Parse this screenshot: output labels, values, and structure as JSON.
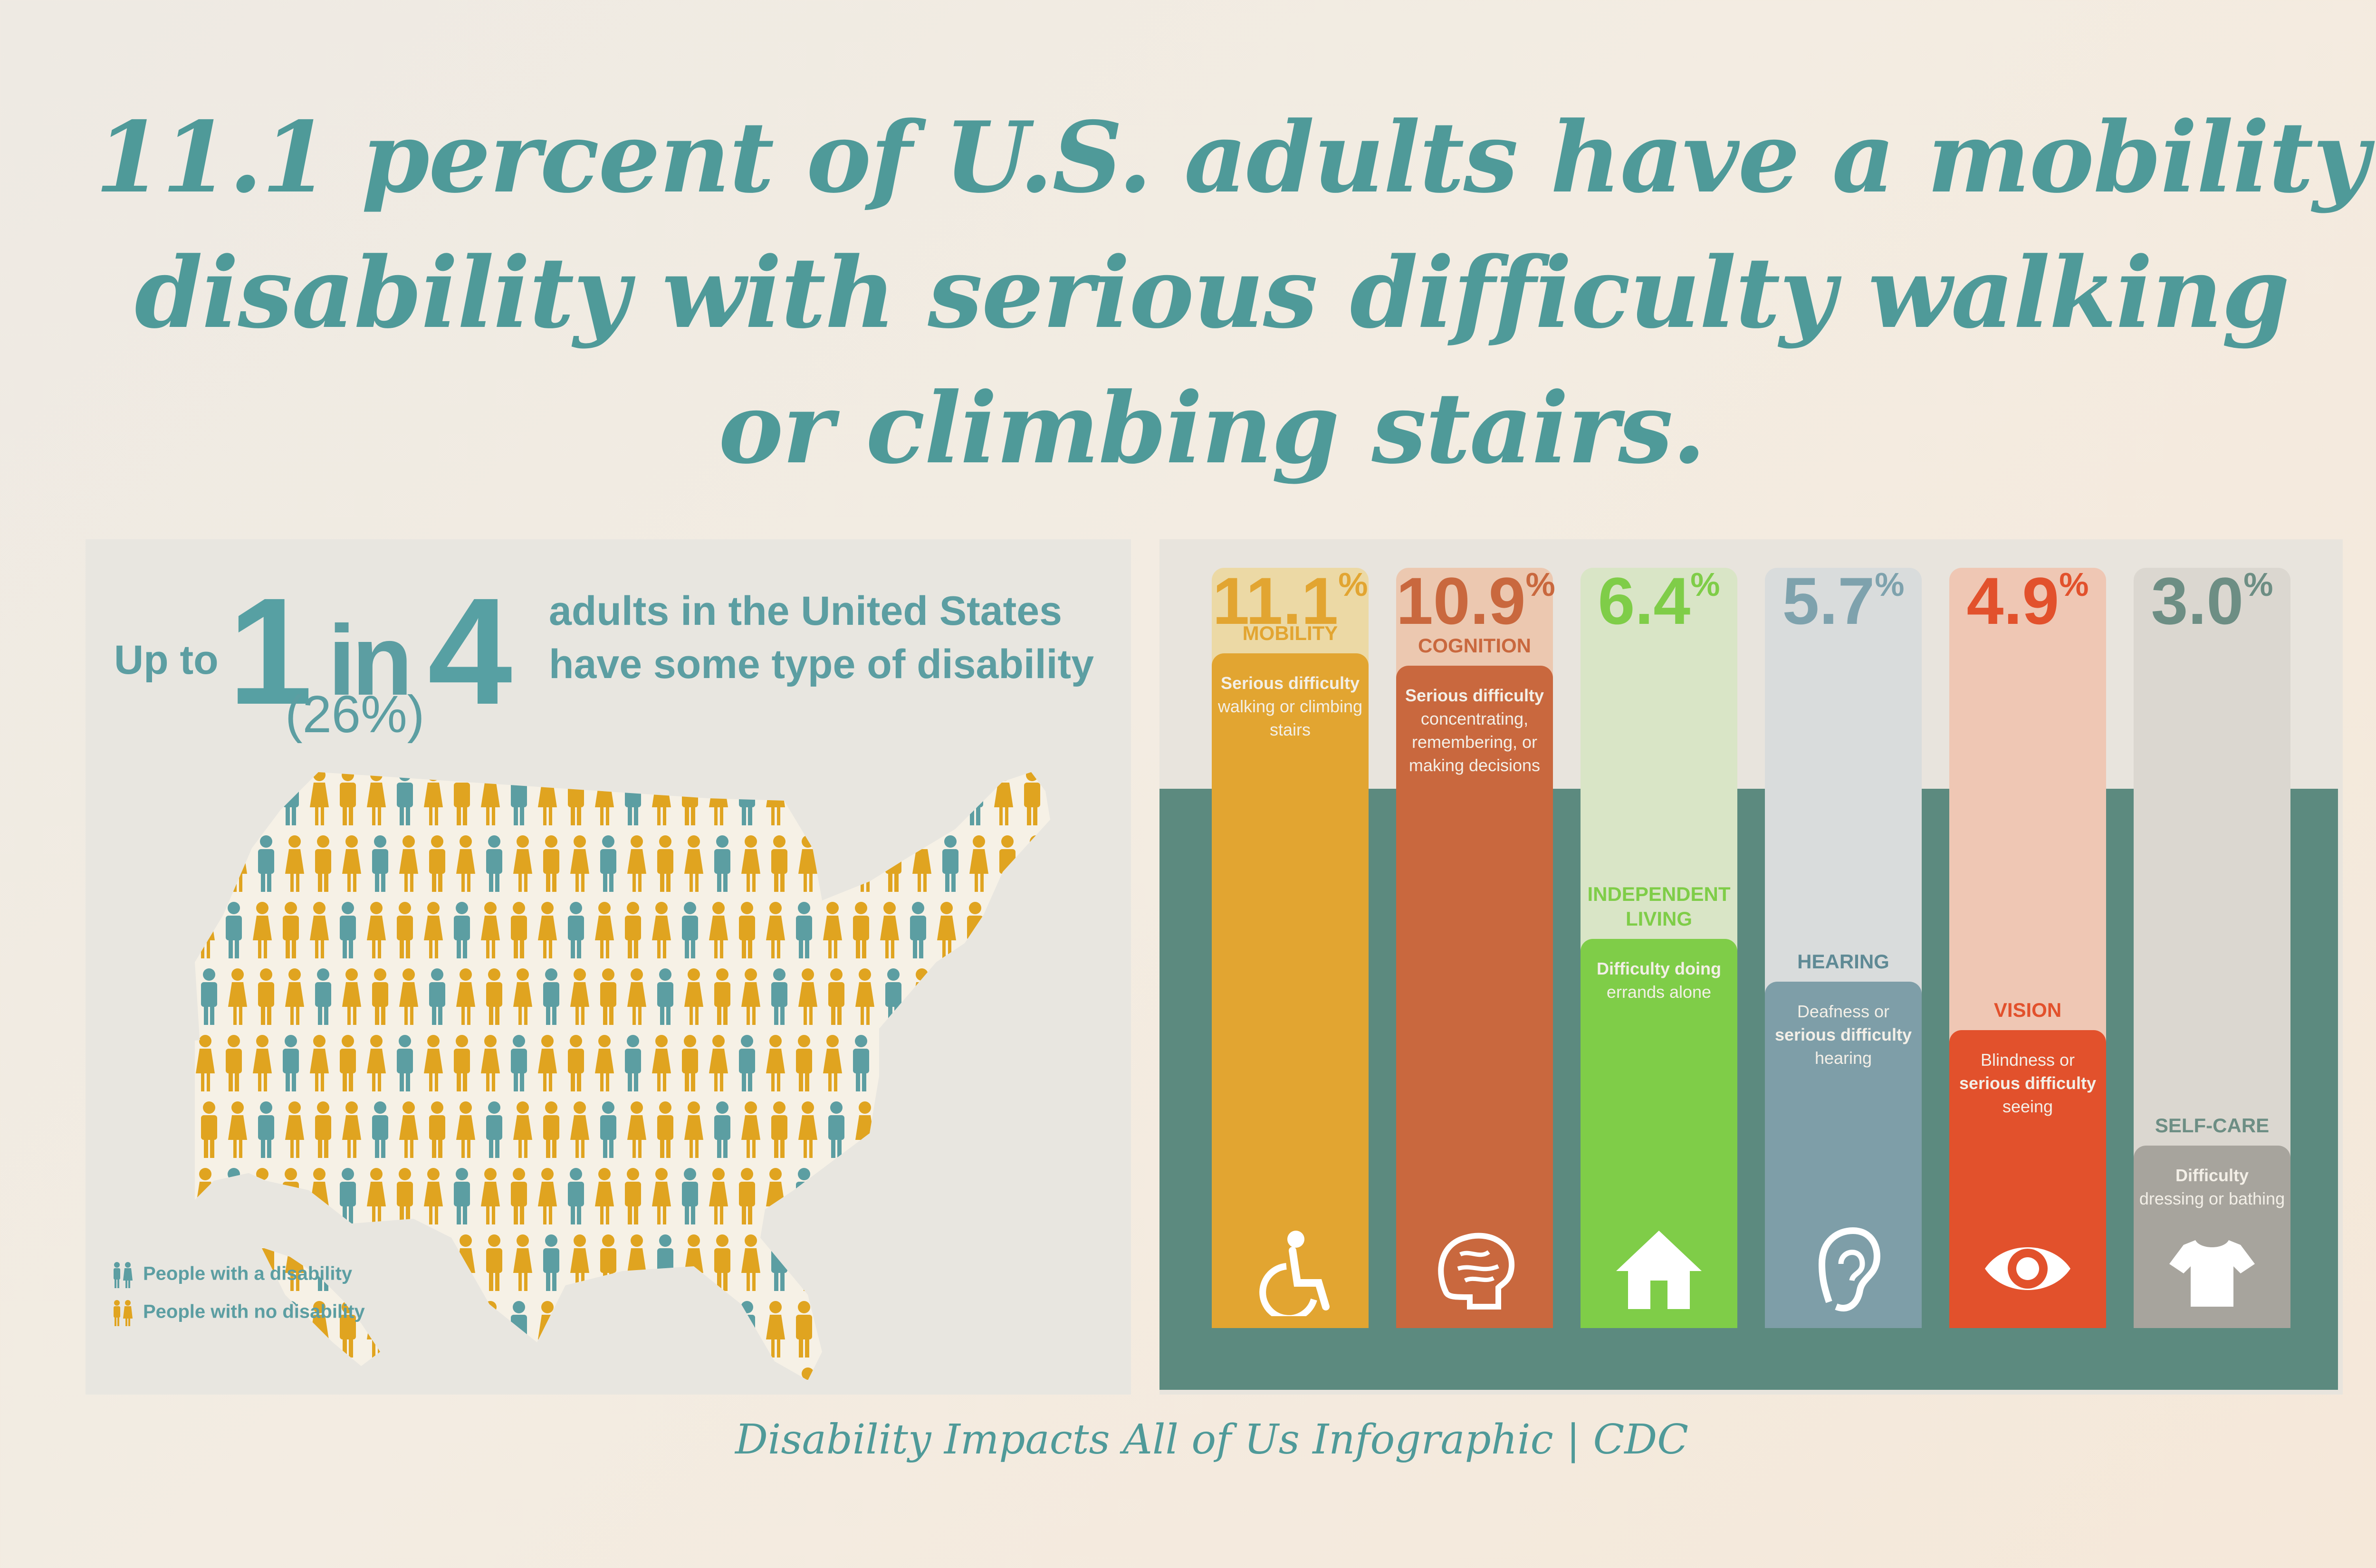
{
  "headline": {
    "line1": "11.1 percent of U.S. adults have a mobility",
    "line2": "disability with serious difficulty walking",
    "line3": "or climbing stairs."
  },
  "stat": {
    "up_to": "Up to",
    "one": "1",
    "in": "in",
    "four": "4",
    "line1": "adults in the United States",
    "line2": "have some type of disability",
    "percent": "(26%)"
  },
  "legend": {
    "disability": "People with a disability",
    "no_disability": "People with no disability"
  },
  "colors": {
    "headline": "#4f9a99",
    "disability_icon": "#5c9ea2",
    "no_disability_icon": "#e0a420",
    "panel_base": "#5c8a7f"
  },
  "chart_data": {
    "type": "bar",
    "unit": "%",
    "categories": [
      "MOBILITY",
      "COGNITION",
      "INDEPENDENT LIVING",
      "HEARING",
      "VISION",
      "SELF-CARE"
    ],
    "values": [
      11.1,
      10.9,
      6.4,
      5.7,
      4.9,
      3.0
    ],
    "value_labels": [
      "11.1",
      "10.9",
      "6.4",
      "5.7",
      "4.9",
      "3.0"
    ],
    "value_suffix": "%",
    "ylim": [
      0,
      11.1
    ],
    "items": [
      {
        "label": "MOBILITY",
        "label_line2": "",
        "value": 11.1,
        "value_label": "11.1",
        "color": "#e2a531",
        "tint": "#ecd9a5",
        "icon": "wheelchair-icon",
        "desc_bold": "Serious difficulty",
        "desc_rest": "walking or climbing stairs",
        "desc_bold_first": true
      },
      {
        "label": "COGNITION",
        "label_line2": "",
        "value": 10.9,
        "value_label": "10.9",
        "color": "#c9683e",
        "tint": "#ecc8b0",
        "icon": "brain-icon",
        "desc_bold": "Serious difficulty",
        "desc_rest": "concentrating, remembering, or making decisions",
        "desc_bold_first": true
      },
      {
        "label": "INDEPENDENT",
        "label_line2": "LIVING",
        "value": 6.4,
        "value_label": "6.4",
        "color": "#7fcd48",
        "tint": "#d9e5c6",
        "icon": "house-icon",
        "desc_bold": "Difficulty doing",
        "desc_rest": "errands alone",
        "desc_bold_first": true
      },
      {
        "label": "HEARING",
        "label_line2": "",
        "value": 5.7,
        "value_label": "5.7",
        "color": "#7e9ea8",
        "tint": "#d9dcdc",
        "icon": "ear-icon",
        "desc_bold": "serious difficulty",
        "desc_rest": "hearing",
        "desc_prefix": "Deafness or",
        "desc_bold_first": false
      },
      {
        "label": "VISION",
        "label_line2": "",
        "value": 4.9,
        "value_label": "4.9",
        "color": "#e2512c",
        "tint": "#efc7b4",
        "icon": "eye-icon",
        "desc_bold": "serious difficulty",
        "desc_rest": "seeing",
        "desc_prefix": "Blindness or",
        "desc_bold_first": false
      },
      {
        "label": "SELF-CARE",
        "label_line2": "",
        "value": 3.0,
        "value_label": "3.0",
        "color": "#a7a49d",
        "tint": "#dbd7d0",
        "icon": "shirt-icon",
        "desc_bold": "Difficulty",
        "desc_rest": "dressing or bathing",
        "desc_bold_first": true
      }
    ]
  },
  "footer": "Disability Impacts All of Us Infographic | CDC"
}
